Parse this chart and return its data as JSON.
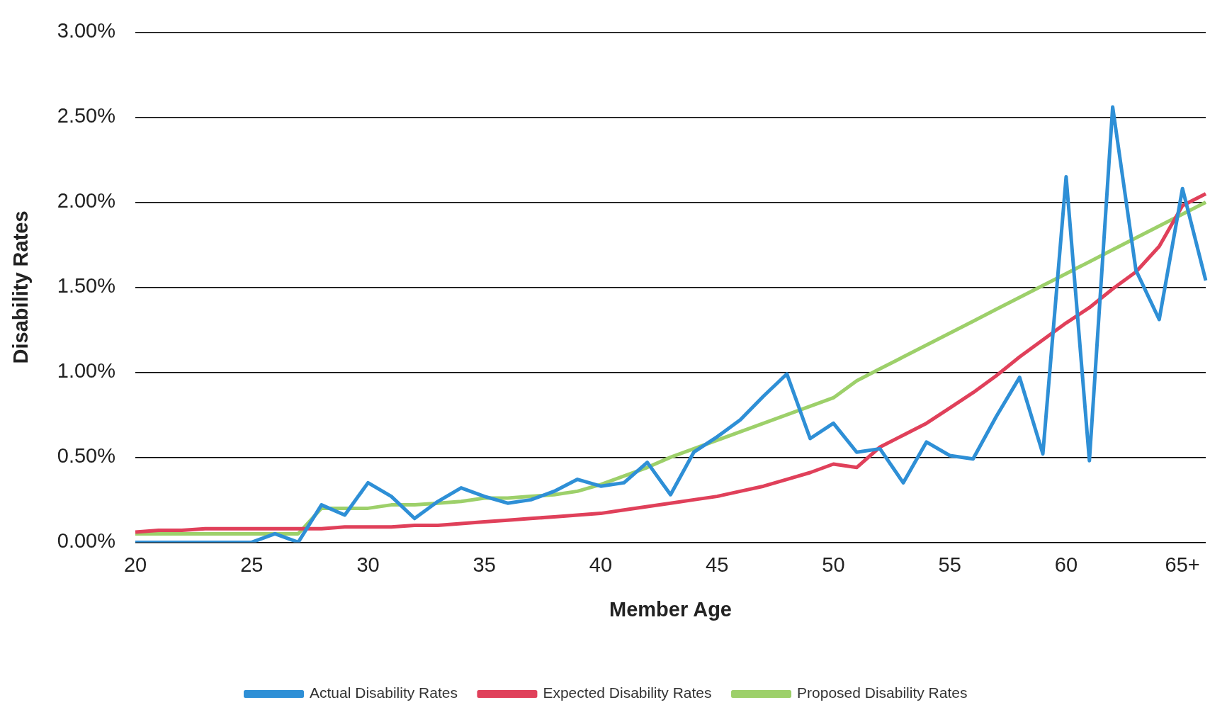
{
  "chart_data": {
    "type": "line",
    "xlabel": "Member Age",
    "ylabel": "Disability Rates",
    "categories": [
      "20",
      null,
      null,
      null,
      null,
      "25",
      null,
      null,
      null,
      null,
      "30",
      null,
      null,
      null,
      null,
      "35",
      null,
      null,
      null,
      null,
      "40",
      null,
      null,
      null,
      null,
      "45",
      null,
      null,
      null,
      null,
      "50",
      null,
      null,
      null,
      null,
      "55",
      null,
      null,
      null,
      null,
      "60",
      null,
      null,
      null,
      null,
      "65+",
      null
    ],
    "series": [
      {
        "name": "Actual Disability Rates",
        "color": "#2e8fd6",
        "values": [
          0,
          0,
          0,
          0,
          0,
          0,
          0.05,
          0,
          0.22,
          0.16,
          0.35,
          0.27,
          0.14,
          0.24,
          0.32,
          0.27,
          0.23,
          0.25,
          0.3,
          0.37,
          0.33,
          0.35,
          0.47,
          0.28,
          0.53,
          0.62,
          0.72,
          0.86,
          0.99,
          0.61,
          0.7,
          0.53,
          0.55,
          0.35,
          0.59,
          0.51,
          0.49,
          0.74,
          0.97,
          0.52,
          2.15,
          0.48,
          2.56,
          1.6,
          1.31,
          2.08,
          1.54
        ]
      },
      {
        "name": "Expected Disability Rates",
        "color": "#e0405a",
        "values": [
          0.06,
          0.07,
          0.07,
          0.08,
          0.08,
          0.08,
          0.08,
          0.08,
          0.08,
          0.09,
          0.09,
          0.09,
          0.1,
          0.1,
          0.11,
          0.12,
          0.13,
          0.14,
          0.15,
          0.16,
          0.17,
          0.19,
          0.21,
          0.23,
          0.25,
          0.27,
          0.3,
          0.33,
          0.37,
          0.41,
          0.46,
          0.44,
          0.56,
          0.63,
          0.7,
          0.79,
          0.88,
          0.98,
          1.09,
          1.19,
          1.29,
          1.38,
          1.49,
          1.59,
          1.74,
          1.98,
          2.05
        ]
      },
      {
        "name": "Proposed Disability Rates",
        "color": "#9dd06a",
        "values": [
          0.05,
          0.05,
          0.05,
          0.05,
          0.05,
          0.05,
          0.05,
          0.05,
          0.2,
          0.2,
          0.2,
          0.22,
          0.22,
          0.23,
          0.24,
          0.26,
          0.26,
          0.27,
          0.28,
          0.3,
          0.34,
          0.39,
          0.44,
          0.5,
          0.55,
          0.6,
          0.65,
          0.7,
          0.75,
          0.8,
          0.85,
          0.95,
          1.02,
          1.09,
          1.16,
          1.23,
          1.3,
          1.37,
          1.44,
          1.51,
          1.58,
          1.65,
          1.72,
          1.79,
          1.86,
          1.93,
          2.0
        ]
      }
    ],
    "ylim": [
      0,
      3
    ],
    "yticks": [
      {
        "value": 0,
        "label": "0.00%"
      },
      {
        "value": 0.5,
        "label": "0.50%"
      },
      {
        "value": 1,
        "label": "1.00%"
      },
      {
        "value": 1.5,
        "label": "1.50%"
      },
      {
        "value": 2,
        "label": "2.00%"
      },
      {
        "value": 2.5,
        "label": "2.50%"
      },
      {
        "value": 3,
        "label": "3.00%"
      }
    ],
    "grid": "y",
    "legend": "bottom",
    "marker": "none",
    "line_style": "solid"
  }
}
